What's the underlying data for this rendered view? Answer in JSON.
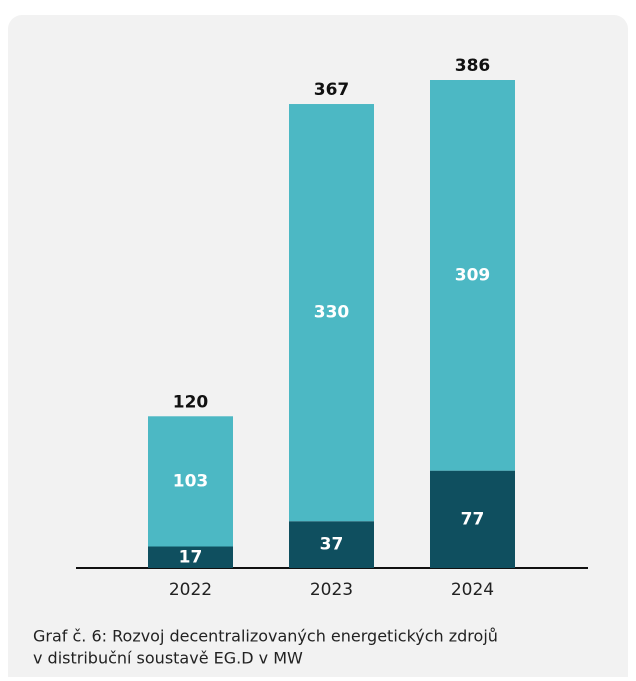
{
  "chart_data": {
    "type": "stacked_bar",
    "categories": [
      "2022",
      "2023",
      "2024"
    ],
    "series": [
      {
        "color": "#0f4f5f",
        "values": [
          17,
          37,
          77
        ]
      },
      {
        "color": "#4cb8c4",
        "values": [
          103,
          330,
          309
        ]
      }
    ],
    "totals": [
      120,
      367,
      386
    ],
    "caption": [
      "Graf č. 6: Rozvoj decentralizovaných energetických zdrojů",
      "v distribuční soustavě EG.D v MW"
    ]
  }
}
